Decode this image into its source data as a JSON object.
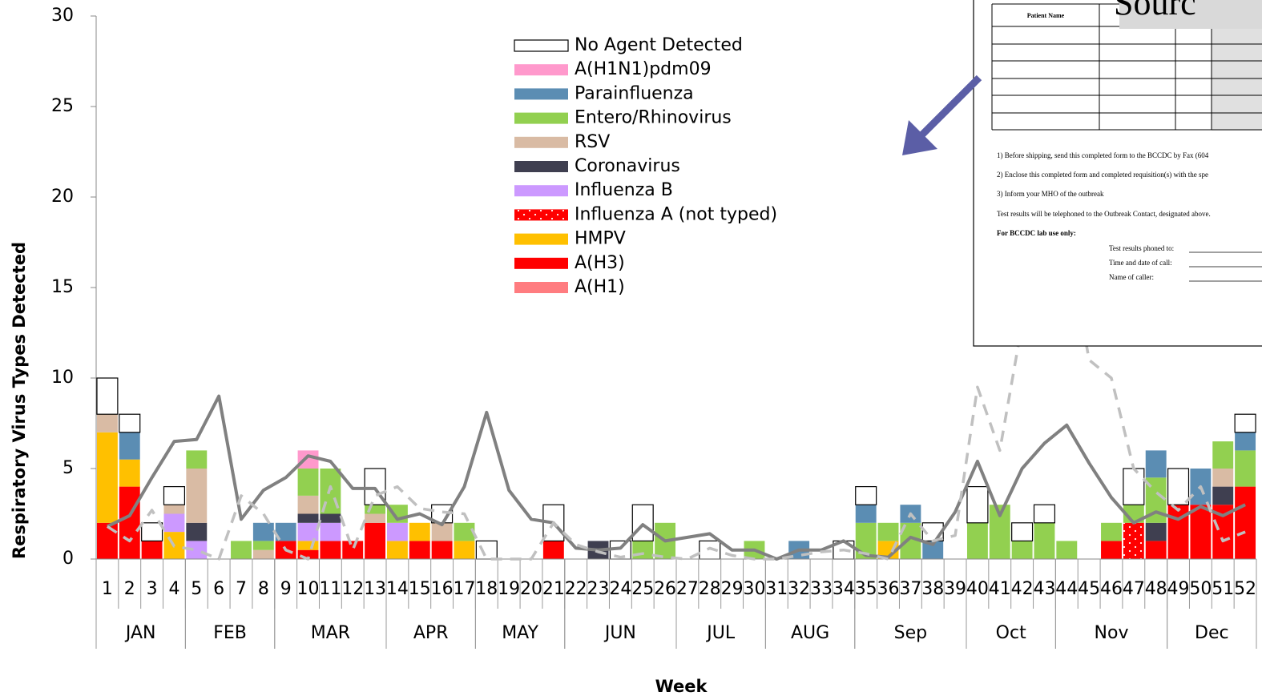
{
  "chart_data": {
    "type": "stacked_bar",
    "y_axis_label": "Respiratory Virus Types Detected",
    "x_axis_label": "Week",
    "categories": [
      "1",
      "2",
      "3",
      "4",
      "5",
      "6",
      "7",
      "8",
      "9",
      "10",
      "11",
      "12",
      "13",
      "14",
      "15",
      "16",
      "17",
      "18",
      "19",
      "20",
      "21",
      "22",
      "23",
      "24",
      "25",
      "26",
      "27",
      "28",
      "29",
      "30",
      "31",
      "32",
      "33",
      "34",
      "35",
      "36",
      "37",
      "38",
      "39",
      "40",
      "41",
      "42",
      "43",
      "44",
      "45",
      "46",
      "47",
      "48",
      "49",
      "50",
      "51",
      "52"
    ],
    "groups": [
      {
        "label": "JAN",
        "first_week": 1,
        "last_week": 4
      },
      {
        "label": "FEB",
        "first_week": 5,
        "last_week": 8
      },
      {
        "label": "MAR",
        "first_week": 9,
        "last_week": 13
      },
      {
        "label": "APR",
        "first_week": 14,
        "last_week": 17
      },
      {
        "label": "MAY",
        "first_week": 18,
        "last_week": 21
      },
      {
        "label": "JUN",
        "first_week": 22,
        "last_week": 26
      },
      {
        "label": "JUL",
        "first_week": 27,
        "last_week": 30
      },
      {
        "label": "AUG",
        "first_week": 31,
        "last_week": 34
      },
      {
        "label": "Sep",
        "first_week": 35,
        "last_week": 39
      },
      {
        "label": "Oct",
        "first_week": 40,
        "last_week": 43
      },
      {
        "label": "Nov",
        "first_week": 44,
        "last_week": 48
      },
      {
        "label": "Dec",
        "first_week": 49,
        "last_week": 52
      }
    ],
    "ylim": [
      0,
      30
    ],
    "yticks": [
      0,
      5,
      10,
      15,
      20,
      25,
      30
    ],
    "series": [
      {
        "name": "A(H1)",
        "color": "#ff7c80",
        "values": [
          0,
          0,
          0,
          0,
          0,
          0,
          0,
          0,
          0,
          0,
          0,
          0,
          0,
          0,
          0,
          0,
          0,
          0,
          0,
          0,
          0,
          0,
          0,
          0,
          0,
          0,
          0,
          0,
          0,
          0,
          0,
          0,
          0,
          0,
          0,
          0,
          0,
          0,
          0,
          0,
          0,
          0,
          0,
          0,
          0,
          0,
          0,
          0,
          0,
          0,
          0,
          0
        ]
      },
      {
        "name": "A(H3)",
        "color": "#ff0000",
        "values": [
          2,
          4,
          1,
          0,
          0,
          0,
          0,
          0,
          1,
          0.5,
          1,
          1,
          2,
          0,
          1,
          1,
          0,
          0,
          0,
          0,
          1,
          0,
          0,
          0,
          0,
          0,
          0,
          0,
          0,
          0,
          0,
          0,
          0,
          0,
          0,
          0,
          0,
          0,
          0,
          0,
          0,
          0,
          0,
          0,
          0,
          1,
          0,
          1,
          3,
          3,
          3,
          4
        ]
      },
      {
        "name": "HMPV",
        "color": "#ffc000",
        "values": [
          5,
          1.5,
          0,
          1.5,
          0,
          0,
          0,
          0,
          0,
          0.5,
          0,
          0,
          0,
          1,
          1,
          0,
          1,
          0,
          0,
          0,
          0,
          0,
          0,
          0,
          0,
          0,
          0,
          0,
          0,
          0,
          0,
          0,
          0,
          0,
          0,
          1,
          0,
          0,
          0,
          0,
          0,
          0,
          0,
          0,
          0,
          0,
          0,
          0,
          0,
          0,
          0,
          0
        ]
      },
      {
        "name": "Influenza A (not typed)",
        "color": "#ff0000",
        "pattern": "dotted",
        "values": [
          0,
          0,
          0,
          0,
          0,
          0,
          0,
          0,
          0,
          0,
          0,
          0,
          0,
          0,
          0,
          0,
          0,
          0,
          0,
          0,
          0,
          0,
          0,
          0,
          0,
          0,
          0,
          0,
          0,
          0,
          0,
          0,
          0,
          0,
          0,
          0,
          0,
          0,
          0,
          0,
          0,
          0,
          0,
          0,
          0,
          0,
          2,
          0,
          0,
          0,
          0,
          0
        ]
      },
      {
        "name": "Influenza B",
        "color": "#cc99ff",
        "values": [
          0,
          0,
          0,
          1,
          1,
          0,
          0,
          0,
          0,
          1,
          1,
          0,
          0,
          1,
          0,
          0,
          0,
          0,
          0,
          0,
          0,
          0,
          0,
          0,
          0,
          0,
          0,
          0,
          0,
          0,
          0,
          0,
          0,
          0,
          0,
          0,
          0,
          0,
          0,
          0,
          0,
          0,
          0,
          0,
          0,
          0,
          0,
          0,
          0,
          0,
          0,
          0
        ]
      },
      {
        "name": "Coronavirus",
        "color": "#3f3f50",
        "values": [
          0,
          0,
          0,
          0,
          1,
          0,
          0,
          0,
          0,
          0.5,
          0.5,
          0,
          0,
          0,
          0,
          0,
          0,
          0,
          0,
          0,
          0,
          0,
          1,
          0,
          0,
          0,
          0,
          0,
          0,
          0,
          0,
          0,
          0,
          0,
          0,
          0,
          0,
          0,
          0,
          0,
          0,
          0,
          0,
          0,
          0,
          0,
          0,
          1,
          0,
          0,
          1,
          0
        ]
      },
      {
        "name": "RSV",
        "color": "#d9bba4",
        "values": [
          1,
          0,
          0,
          0.5,
          3,
          0,
          0,
          0.5,
          0,
          1,
          0,
          0,
          0.5,
          0,
          0,
          1,
          0,
          0,
          0,
          0,
          0,
          0,
          0,
          0,
          0,
          0,
          0,
          0,
          0,
          0,
          0,
          0,
          0,
          0,
          0,
          0,
          0,
          0,
          0,
          0,
          0,
          0,
          0,
          0,
          0,
          0,
          0,
          0,
          0,
          0,
          1,
          0
        ]
      },
      {
        "name": "Entero/Rhinovirus",
        "color": "#92d050",
        "values": [
          0,
          0,
          0,
          0,
          1,
          0,
          1,
          0.5,
          0,
          1.5,
          2.5,
          0,
          0.5,
          1,
          0,
          0,
          1,
          0,
          0,
          0,
          0,
          0,
          0,
          0,
          1,
          2,
          0,
          0,
          0,
          1,
          0,
          0,
          0,
          0,
          2,
          1,
          2,
          0,
          0,
          2,
          3,
          1,
          2,
          1,
          0,
          1,
          1,
          2.5,
          0,
          0,
          1.5,
          2
        ]
      },
      {
        "name": "Parainfluenza",
        "color": "#5b8db3",
        "values": [
          0,
          1.5,
          0,
          0,
          0,
          0,
          0,
          1,
          1,
          0,
          0,
          0,
          0,
          0,
          0,
          0,
          0,
          0,
          0,
          0,
          0,
          0,
          0,
          0,
          0,
          0,
          0,
          0,
          0,
          0,
          0,
          1,
          0,
          0,
          1,
          0,
          1,
          1,
          0,
          0,
          0,
          0,
          0,
          0,
          0,
          0,
          0,
          1.5,
          0,
          2,
          0,
          1
        ]
      },
      {
        "name": "A(H1N1)pdm09",
        "color": "#ff99cc",
        "values": [
          0,
          0,
          0,
          0,
          0,
          0,
          0,
          0,
          0,
          1,
          0,
          0,
          0,
          0,
          0,
          0,
          0,
          0,
          0,
          0,
          0,
          0,
          0,
          0,
          0,
          0,
          0,
          0,
          0,
          0,
          0,
          0,
          0,
          0,
          0,
          0,
          0,
          0,
          0,
          0,
          0,
          0,
          0,
          0,
          0,
          0,
          0,
          0,
          0,
          0,
          0,
          0
        ]
      },
      {
        "name": "No Agent Detected",
        "color": "#ffffff",
        "outline": "#000000",
        "values": [
          2,
          1,
          1,
          1,
          0,
          0,
          0,
          0,
          0,
          0,
          0,
          0,
          2,
          0,
          0,
          1,
          0,
          1,
          0,
          0,
          2,
          0,
          0,
          1,
          2,
          0,
          0,
          1,
          0,
          0,
          0,
          0,
          0,
          1,
          1,
          0,
          0,
          1,
          0,
          2,
          0,
          1,
          1,
          0,
          0,
          0,
          2,
          0,
          2,
          0,
          0,
          1
        ]
      }
    ],
    "lines": [
      {
        "color": "#808080",
        "dashed": false,
        "values": [
          1.8,
          2.4,
          4.5,
          6.5,
          6.6,
          9,
          2.2,
          3.8,
          4.5,
          5.7,
          5.4,
          3.9,
          3.9,
          2.2,
          2.5,
          1.9,
          4,
          8.1,
          3.8,
          2.2,
          2,
          0.6,
          0.5,
          0.6,
          1.9,
          1,
          1.2,
          1.4,
          0.5,
          0.5,
          0,
          0.5,
          0.5,
          1,
          0.2,
          0.1,
          1.2,
          0.8,
          2.6,
          5.4,
          2.4,
          5,
          6.4,
          7.4,
          5.3,
          3.4,
          2,
          2.6,
          2.2,
          2.9,
          2.4,
          3
        ]
      },
      {
        "color": "#c0c0c0",
        "dashed": true,
        "values": [
          1.8,
          1,
          2.7,
          0.7,
          0.5,
          0,
          3.5,
          2.5,
          0.5,
          0,
          4,
          0.5,
          3.5,
          4,
          2.8,
          2.6,
          2.5,
          0,
          0,
          0,
          2,
          0.8,
          0.4,
          0.1,
          0.3,
          0.1,
          0,
          0.6,
          0.2,
          0,
          0,
          0.2,
          0.4,
          0.5,
          0.3,
          0,
          2.5,
          1,
          1.3,
          9.5,
          6,
          13,
          18,
          18,
          11,
          10,
          5,
          3.7,
          2.7,
          4,
          1,
          1.5
        ]
      }
    ],
    "legend": "upper-center"
  },
  "inset": {
    "title_fragment": "Sourc",
    "table_header": "Patient Name",
    "instructions": [
      "1) Before shipping, send this completed form to the BCCDC by Fax (604",
      "2) Enclose this completed form and completed requisition(s) with the spe",
      "3) Inform your MHO of the outbreak",
      "Test results will be telephoned to the Outbreak Contact, designated above."
    ],
    "lab_heading": "For BCCDC lab use only:",
    "lab_fields": [
      "Test results phoned to:",
      "Time and date of call:",
      "Name of caller:"
    ]
  }
}
